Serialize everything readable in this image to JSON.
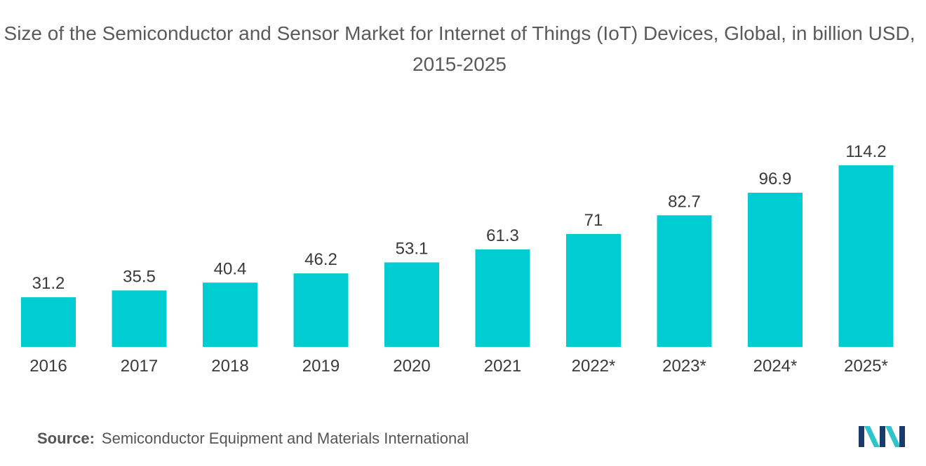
{
  "chart_data": {
    "type": "bar",
    "title": "Size of the Semiconductor and Sensor Market for Internet of Things (IoT) Devices, Global, in billion USD, 2015-2025",
    "categories": [
      "2016",
      "2017",
      "2018",
      "2019",
      "2020",
      "2021",
      "2022*",
      "2023*",
      "2024*",
      "2025*"
    ],
    "values": [
      31.2,
      35.5,
      40.4,
      46.2,
      53.1,
      61.3,
      71,
      82.7,
      96.9,
      114.2
    ],
    "value_labels": [
      "31.2",
      "35.5",
      "40.4",
      "46.2",
      "53.1",
      "61.3",
      "71",
      "82.7",
      "96.9",
      "114.2"
    ],
    "bar_color": "#00ccd1",
    "grid": false,
    "legend": "none"
  },
  "source": {
    "label": "Source:",
    "text": "Semiconductor Equipment and Materials International"
  },
  "logo": {
    "icon": "mordor-intelligence-logo",
    "colors": [
      "#1a3a6b",
      "#2ec4c9"
    ]
  }
}
